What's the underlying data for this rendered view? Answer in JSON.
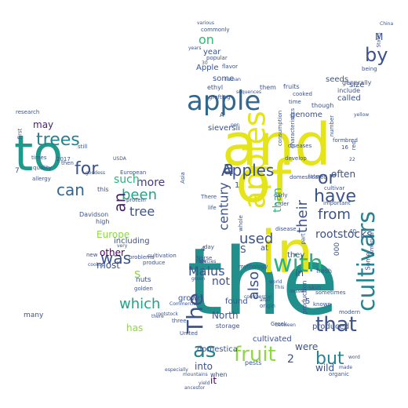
{
  "words": [
    {
      "text": "the",
      "color": "#21908d"
    },
    {
      "text": "and",
      "color": "#e5e419"
    },
    {
      "text": "of",
      "color": "#e5e419"
    },
    {
      "text": "in",
      "color": "#e5e419"
    },
    {
      "text": "to",
      "color": "#1f998a"
    },
    {
      "text": "apple",
      "color": "#31668e"
    },
    {
      "text": "apples",
      "color": "#e5e419"
    },
    {
      "text": "cultivars",
      "color": "#26828e"
    },
    {
      "text": "with",
      "color": "#2db27d"
    },
    {
      "text": "fruit",
      "color": "#8fd744"
    },
    {
      "text": "that",
      "color": "#3b528b"
    },
    {
      "text": "The",
      "color": "#3b528b"
    },
    {
      "text": "as",
      "color": "#26828e"
    },
    {
      "text": "by",
      "color": "#3b528b"
    },
    {
      "text": "Apples",
      "color": "#3b528b"
    },
    {
      "text": "trees",
      "color": "#26828e"
    },
    {
      "text": "for",
      "color": "#3b528b"
    },
    {
      "text": "can",
      "color": "#31668e"
    },
    {
      "text": "have",
      "color": "#3b528b"
    },
    {
      "text": "from",
      "color": "#3b528b"
    },
    {
      "text": "which",
      "color": "#20a386"
    },
    {
      "text": "was",
      "color": "#3b528b"
    },
    {
      "text": "been",
      "color": "#20a386"
    },
    {
      "text": "an",
      "color": "#481f70"
    },
    {
      "text": "or",
      "color": "#3b528b"
    },
    {
      "text": "a",
      "color": "#3b528b"
    },
    {
      "text": "but",
      "color": "#26828e"
    },
    {
      "text": "used",
      "color": "#3b528b"
    },
    {
      "text": "also",
      "color": "#3b528b"
    },
    {
      "text": "their",
      "color": "#3b528b"
    },
    {
      "text": "century",
      "color": "#3b528b"
    },
    {
      "text": "Malus",
      "color": "#3b528b"
    },
    {
      "text": "on",
      "color": "#35b779"
    },
    {
      "text": "tree",
      "color": "#3b528b"
    },
    {
      "text": "more",
      "color": "#443983"
    },
    {
      "text": "such",
      "color": "#2db27d"
    },
    {
      "text": "may",
      "color": "#481f70"
    },
    {
      "text": "not",
      "color": "#3b528b"
    },
    {
      "text": "than",
      "color": "#2db27d"
    },
    {
      "text": "rootstocks",
      "color": "#3b528b"
    },
    {
      "text": "Europe",
      "color": "#8fd744"
    },
    {
      "text": "other",
      "color": "#440154"
    },
    {
      "text": "most",
      "color": "#3b528b"
    },
    {
      "text": "has",
      "color": "#8fd744"
    },
    {
      "text": "often",
      "color": "#3b528b"
    },
    {
      "text": "year",
      "color": "#3b528b"
    },
    {
      "text": "Apple",
      "color": "#3b528b"
    },
    {
      "text": "some",
      "color": "#3b528b"
    },
    {
      "text": "called",
      "color": "#3b528b"
    },
    {
      "text": "seeds",
      "color": "#3b528b"
    },
    {
      "text": "genome",
      "color": "#3b528b"
    },
    {
      "text": "including",
      "color": "#3b528b"
    },
    {
      "text": "sieversii",
      "color": "#3b528b"
    },
    {
      "text": "into",
      "color": "#3b528b"
    },
    {
      "text": "wild",
      "color": "#3b528b"
    },
    {
      "text": "it",
      "color": "#440154"
    },
    {
      "text": "were",
      "color": "#3b528b"
    },
    {
      "text": "North",
      "color": "#3b528b"
    },
    {
      "text": "In",
      "color": "#3b528b"
    },
    {
      "text": "produced",
      "color": "#3b528b"
    },
    {
      "text": "cultivated",
      "color": "#3b528b"
    },
    {
      "text": "domestica",
      "color": "#3b528b"
    },
    {
      "text": "found",
      "color": "#3b528b"
    },
    {
      "text": "grown",
      "color": "#3b528b"
    },
    {
      "text": "2",
      "color": "#3b528b"
    },
    {
      "text": "s",
      "color": "#8fd744"
    },
    {
      "text": "S",
      "color": "#3b528b"
    },
    {
      "text": "M",
      "color": "#3b528b"
    },
    {
      "text": "size",
      "color": "#3b528b"
    },
    {
      "text": "include",
      "color": "#3b528b"
    },
    {
      "text": "generally",
      "color": "#3b528b"
    },
    {
      "text": "fruits",
      "color": "#3b528b"
    },
    {
      "text": "though",
      "color": "#3b528b"
    },
    {
      "text": "them",
      "color": "#3b528b"
    },
    {
      "text": "fresh",
      "color": "#3b528b"
    },
    {
      "text": "ethyl",
      "color": "#3b528b"
    },
    {
      "text": "popular",
      "color": "#3b528b"
    },
    {
      "text": "commonly",
      "color": "#3b528b"
    },
    {
      "text": "being",
      "color": "#3b528b"
    },
    {
      "text": "flavor",
      "color": "#3b528b"
    },
    {
      "text": "time",
      "color": "#3b528b"
    },
    {
      "text": "cooked",
      "color": "#3b528b"
    },
    {
      "text": "grafting",
      "color": "#3b528b"
    },
    {
      "text": "number",
      "color": "#3b528b"
    },
    {
      "text": "form",
      "color": "#3b528b"
    },
    {
      "text": "bred",
      "color": "#3b528b"
    },
    {
      "text": "red",
      "color": "#3b528b"
    },
    {
      "text": "A",
      "color": "#3b528b"
    },
    {
      "text": "Asia",
      "color": "#3b528b"
    },
    {
      "text": "diseases",
      "color": "#3b528b"
    },
    {
      "text": "disease",
      "color": "#3b528b"
    },
    {
      "text": "develop",
      "color": "#3b528b"
    },
    {
      "text": "domesticated",
      "color": "#3b528b"
    },
    {
      "text": "early",
      "color": "#3b528b"
    },
    {
      "text": "cider",
      "color": "#3b528b"
    },
    {
      "text": "There",
      "color": "#3b528b"
    },
    {
      "text": "life",
      "color": "#3b528b"
    },
    {
      "text": "late",
      "color": "#3b528b"
    },
    {
      "text": "cultivar",
      "color": "#3b528b"
    },
    {
      "text": "important",
      "color": "#3b528b"
    },
    {
      "text": "consumption",
      "color": "#3b528b"
    },
    {
      "text": "characteristics",
      "color": "#3b528b"
    },
    {
      "text": "part",
      "color": "#3b528b"
    },
    {
      "text": "at",
      "color": "#3b528b"
    },
    {
      "text": "day",
      "color": "#3b528b"
    },
    {
      "text": "raw",
      "color": "#3b528b"
    },
    {
      "text": "Norse",
      "color": "#3b528b"
    },
    {
      "text": "mythology",
      "color": "#3b528b"
    },
    {
      "text": "they",
      "color": "#3b528b"
    },
    {
      "text": "skin",
      "color": "#3b528b"
    },
    {
      "text": "Some",
      "color": "#3b528b"
    },
    {
      "text": "sometimes",
      "color": "#3b528b"
    },
    {
      "text": "storage",
      "color": "#3b528b"
    },
    {
      "text": "origin",
      "color": "#3b528b"
    },
    {
      "text": "production",
      "color": "#3b528b"
    },
    {
      "text": "known",
      "color": "#3b528b"
    },
    {
      "text": "modern",
      "color": "#3b528b"
    },
    {
      "text": "when",
      "color": "#3b528b"
    },
    {
      "text": "pests",
      "color": "#3b528b"
    },
    {
      "text": "organic",
      "color": "#3b528b"
    },
    {
      "text": "United",
      "color": "#3b528b"
    },
    {
      "text": "three",
      "color": "#3b528b"
    },
    {
      "text": "yield",
      "color": "#3b528b"
    },
    {
      "text": "America",
      "color": "#3b528b"
    },
    {
      "text": "Greek",
      "color": "#3b528b"
    },
    {
      "text": "4",
      "color": "#3b528b"
    },
    {
      "text": "5",
      "color": "#3b528b"
    },
    {
      "text": "1",
      "color": "#3b528b"
    },
    {
      "text": "7",
      "color": "#3b528b"
    },
    {
      "text": "40",
      "color": "#3b528b"
    },
    {
      "text": "000",
      "color": "#3b528b"
    },
    {
      "text": "nuts",
      "color": "#3b528b"
    },
    {
      "text": "golden",
      "color": "#3b528b"
    },
    {
      "text": "produce",
      "color": "#3b528b"
    },
    {
      "text": "high",
      "color": "#3b528b"
    },
    {
      "text": "Davidson",
      "color": "#3b528b"
    },
    {
      "text": "this",
      "color": "#3b528b"
    },
    {
      "text": "European",
      "color": "#3b528b"
    },
    {
      "text": "protein",
      "color": "#3b528b"
    },
    {
      "text": "first",
      "color": "#3b528b"
    },
    {
      "text": "many",
      "color": "#3b528b"
    },
    {
      "text": "times",
      "color": "#3b528b"
    },
    {
      "text": "quality",
      "color": "#3b528b"
    },
    {
      "text": "allergy",
      "color": "#3b528b"
    },
    {
      "text": "then",
      "color": "#3b528b"
    },
    {
      "text": "still",
      "color": "#3b528b"
    },
    {
      "text": "2017",
      "color": "#3b528b"
    },
    {
      "text": "research",
      "color": "#3b528b"
    },
    {
      "text": "new",
      "color": "#3b528b"
    },
    {
      "text": "cookup",
      "color": "#3b528b"
    },
    {
      "text": "problems",
      "color": "#3b528b"
    },
    {
      "text": "cultivation",
      "color": "#3b528b"
    },
    {
      "text": "there",
      "color": "#3b528b"
    },
    {
      "text": "Commercial",
      "color": "#3b528b"
    },
    {
      "text": "species",
      "color": "#3b528b"
    },
    {
      "text": "green",
      "color": "#3b528b"
    },
    {
      "text": "mountains",
      "color": "#3b528b"
    },
    {
      "text": "especially",
      "color": "#3b528b"
    },
    {
      "text": "ancestor",
      "color": "#3b528b"
    },
    {
      "text": "after",
      "color": "#3b528b"
    },
    {
      "text": "between",
      "color": "#3b528b"
    },
    {
      "text": "world",
      "color": "#3b528b"
    },
    {
      "text": "whole",
      "color": "#3b528b"
    },
    {
      "text": "This",
      "color": "#3b528b"
    },
    {
      "text": "dessert",
      "color": "#3b528b"
    },
    {
      "text": "sequences",
      "color": "#3b528b"
    },
    {
      "text": "human",
      "color": "#3b528b"
    },
    {
      "text": "per",
      "color": "#3b528b"
    },
    {
      "text": "years",
      "color": "#3b528b"
    },
    {
      "text": "various",
      "color": "#3b528b"
    },
    {
      "text": "China",
      "color": "#3b528b"
    },
    {
      "text": "States",
      "color": "#3b528b"
    },
    {
      "text": "yellow",
      "color": "#3b528b"
    },
    {
      "text": "made",
      "color": "#3b528b"
    },
    {
      "text": "word",
      "color": "#3b528b"
    },
    {
      "text": "commercial",
      "color": "#3b528b"
    },
    {
      "text": "goddess",
      "color": "#3b528b"
    },
    {
      "text": "very",
      "color": "#3b528b"
    },
    {
      "text": "USDA",
      "color": "#3b528b"
    },
    {
      "text": "rootstock",
      "color": "#3b528b"
    },
    {
      "text": "16",
      "color": "#3b528b"
    },
    {
      "text": "30",
      "color": "#3b528b"
    },
    {
      "text": "22",
      "color": "#3b528b"
    }
  ]
}
